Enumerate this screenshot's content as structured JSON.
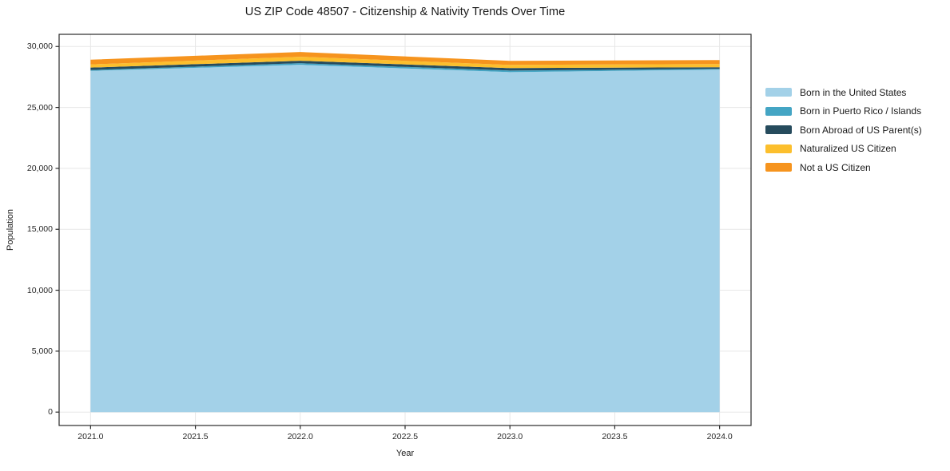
{
  "page": {
    "title": "US ZIP Code 48507 - Citizenship & Nativity Trends Over Time"
  },
  "chart_data": {
    "type": "area",
    "stacked": true,
    "title": "US ZIP Code 48507 - Citizenship & Nativity Trends Over Time",
    "xlabel": "Year",
    "ylabel": "Population",
    "x": [
      2021,
      2022,
      2023,
      2024
    ],
    "series": [
      {
        "name": "Born in the United States",
        "color": "#A3D1E8",
        "values": [
          28000,
          28500,
          27900,
          28100
        ]
      },
      {
        "name": "Born in Puerto Rico / Islands",
        "color": "#44A5C4",
        "values": [
          70,
          130,
          130,
          70
        ]
      },
      {
        "name": "Born Abroad of US Parent(s)",
        "color": "#264B5D",
        "values": [
          200,
          200,
          200,
          130
        ]
      },
      {
        "name": "Naturalized US Citizen",
        "color": "#FCBF2D",
        "values": [
          260,
          330,
          260,
          260
        ]
      },
      {
        "name": "Not a US Citizen",
        "color": "#F6941E",
        "values": [
          390,
          390,
          330,
          330
        ]
      }
    ],
    "xlim": [
      2020.85,
      2024.15
    ],
    "ylim": [
      -1100,
      31000
    ],
    "xticks": [
      2021.0,
      2021.5,
      2022.0,
      2022.5,
      2023.0,
      2023.5,
      2024.0
    ],
    "yticks": [
      0,
      5000,
      10000,
      15000,
      20000,
      25000,
      30000
    ],
    "grid": true,
    "grid_color": "#e7e7e7",
    "spine_color": "#2a2a2a",
    "legend_position": "right-outside"
  }
}
